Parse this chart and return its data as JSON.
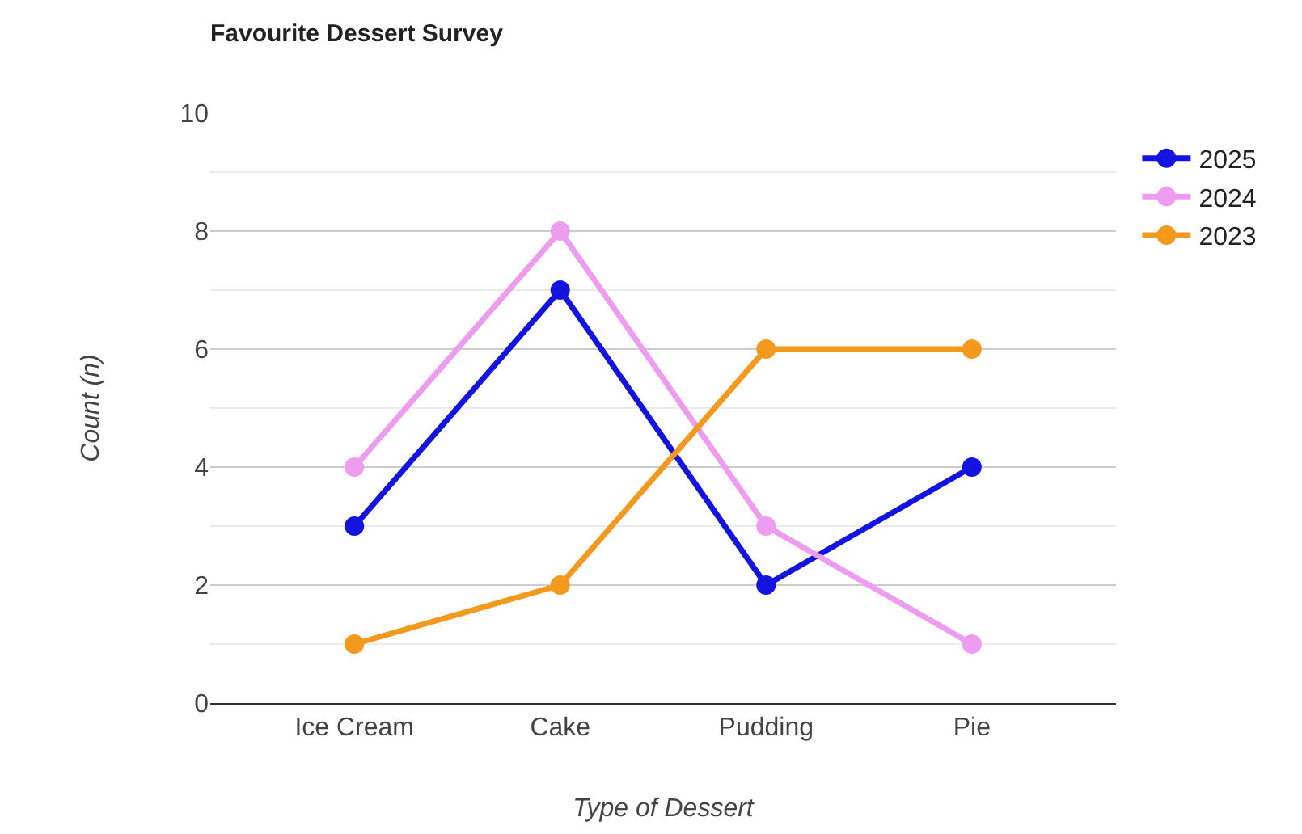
{
  "chart_data": {
    "type": "line",
    "title": "Favourite Dessert Survey",
    "xlabel": "Type of Dessert",
    "ylabel": "Count (n)",
    "categories": [
      "Ice Cream",
      "Cake",
      "Pudding",
      "Pie"
    ],
    "series": [
      {
        "name": "2025",
        "color": "#1414e0",
        "values": [
          3,
          7,
          2,
          4
        ]
      },
      {
        "name": "2024",
        "color": "#ee9cf0",
        "values": [
          4,
          8,
          3,
          1
        ]
      },
      {
        "name": "2023",
        "color": "#f39a1e",
        "values": [
          1,
          2,
          6,
          6
        ]
      }
    ],
    "ylim": [
      0,
      10
    ],
    "yticks": [
      0,
      {
        "value": 1,
        "label": null
      },
      2,
      {
        "value": 3,
        "label": null
      },
      4,
      {
        "value": 5,
        "label": null
      },
      6,
      {
        "value": 7,
        "label": null
      },
      8,
      {
        "value": 9,
        "label": null
      },
      10
    ],
    "grid": "y",
    "legend": "top right",
    "marker": "circle",
    "line_style": "solid"
  }
}
